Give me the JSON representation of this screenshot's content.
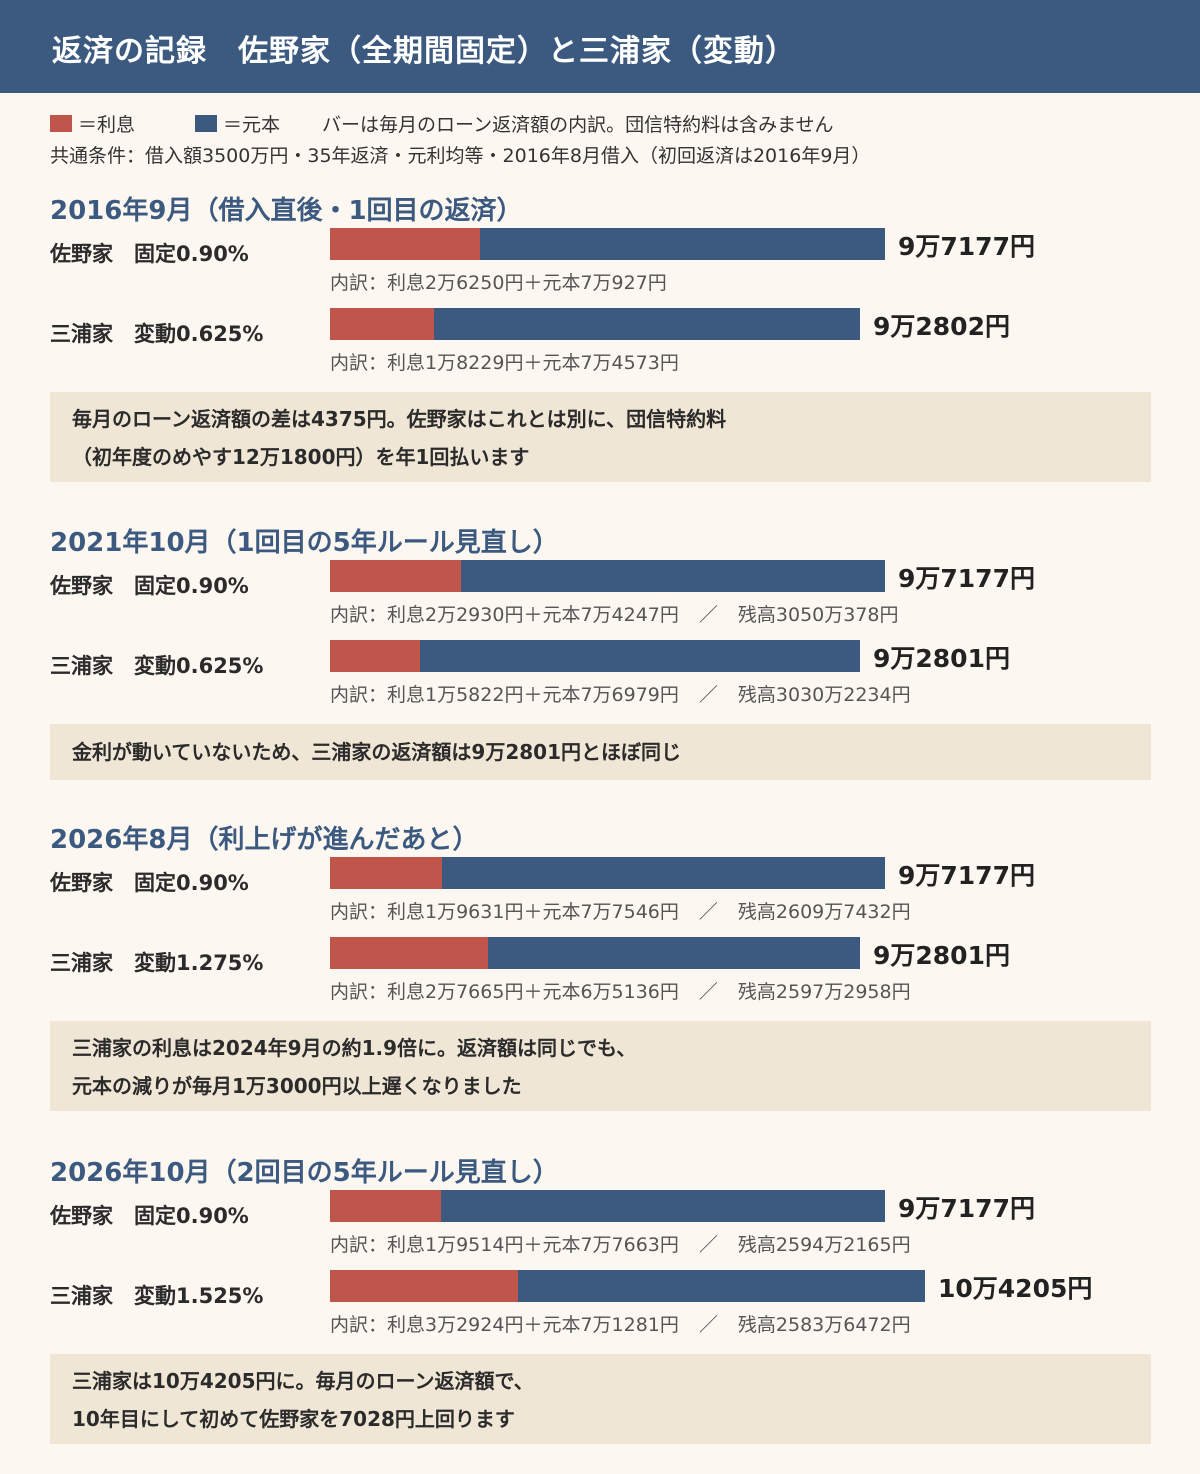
{
  "header": {
    "title": "返済の記録　佐野家（全期間固定）と三浦家（変動）"
  },
  "legend": {
    "interest_label": "＝利息",
    "principal_label": "＝元本",
    "description": "バーは毎月のローン返済額の内訳。団信特約料は含みません",
    "conditions": "共通条件：借入額3500万円・35年返済・元利均等・2016年8月借入（初回返済は2016年9月）",
    "interest_color": "#c0554c",
    "principal_color": "#3c5a80"
  },
  "chart_data": {
    "type": "bar",
    "stacked": true,
    "orientation": "horizontal",
    "series_names": [
      "利息",
      "元本"
    ],
    "colors": {
      "interest": "#c0554c",
      "principal": "#3c5a80"
    },
    "sections": [
      {
        "title": "2016年9月（借入直後・1回目の返済）",
        "rows": [
          {
            "label": "佐野家　固定0.90%",
            "interest": 26250,
            "principal": 70927,
            "total": 97177,
            "total_label": "9万7177円",
            "detail": "内訳：利息2万6250円＋元本7万927円",
            "balance_label": ""
          },
          {
            "label": "三浦家　変動0.625%",
            "interest": 18229,
            "principal": 74573,
            "total": 92802,
            "total_label": "9万2802円",
            "detail": "内訳：利息1万8229円＋元本7万4573円",
            "balance_label": ""
          }
        ],
        "note_lines": [
          "毎月のローン返済額の差は4375円。佐野家はこれとは別に、団信特約料",
          "（初年度のめやす12万1800円）を年1回払います"
        ]
      },
      {
        "title": "2021年10月（1回目の5年ルール見直し）",
        "rows": [
          {
            "label": "佐野家　固定0.90%",
            "interest": 22930,
            "principal": 74247,
            "total": 97177,
            "total_label": "9万7177円",
            "detail": "内訳：利息2万2930円＋元本7万4247円",
            "balance_label": "残高3050万378円"
          },
          {
            "label": "三浦家　変動0.625%",
            "interest": 15822,
            "principal": 76979,
            "total": 92801,
            "total_label": "9万2801円",
            "detail": "内訳：利息1万5822円＋元本7万6979円",
            "balance_label": "残高3030万2234円"
          }
        ],
        "note_lines": [
          "金利が動いていないため、三浦家の返済額は9万2801円とほぼ同じ"
        ]
      },
      {
        "title": "2026年8月（利上げが進んだあと）",
        "rows": [
          {
            "label": "佐野家　固定0.90%",
            "interest": 19631,
            "principal": 77546,
            "total": 97177,
            "total_label": "9万7177円",
            "detail": "内訳：利息1万9631円＋元本7万7546円",
            "balance_label": "残高2609万7432円"
          },
          {
            "label": "三浦家　変動1.275%",
            "interest": 27665,
            "principal": 65136,
            "total": 92801,
            "total_label": "9万2801円",
            "detail": "内訳：利息2万7665円＋元本6万5136円",
            "balance_label": "残高2597万2958円"
          }
        ],
        "note_lines": [
          "三浦家の利息は2024年9月の約1.9倍に。返済額は同じでも、",
          "元本の減りが毎月1万3000円以上遅くなりました"
        ]
      },
      {
        "title": "2026年10月（2回目の5年ルール見直し）",
        "rows": [
          {
            "label": "佐野家　固定0.90%",
            "interest": 19514,
            "principal": 77663,
            "total": 97177,
            "total_label": "9万7177円",
            "detail": "内訳：利息1万9514円＋元本7万7663円",
            "balance_label": "残高2594万2165円"
          },
          {
            "label": "三浦家　変動1.525%",
            "interest": 32924,
            "principal": 71281,
            "total": 104205,
            "total_label": "10万4205円",
            "detail": "内訳：利息3万2924円＋元本7万1281円",
            "balance_label": "残高2583万6472円"
          }
        ],
        "note_lines": [
          "三浦家は10万4205円に。毎月のローン返済額で、",
          "10年目にして初めて佐野家を7028円上回ります"
        ]
      }
    ]
  }
}
